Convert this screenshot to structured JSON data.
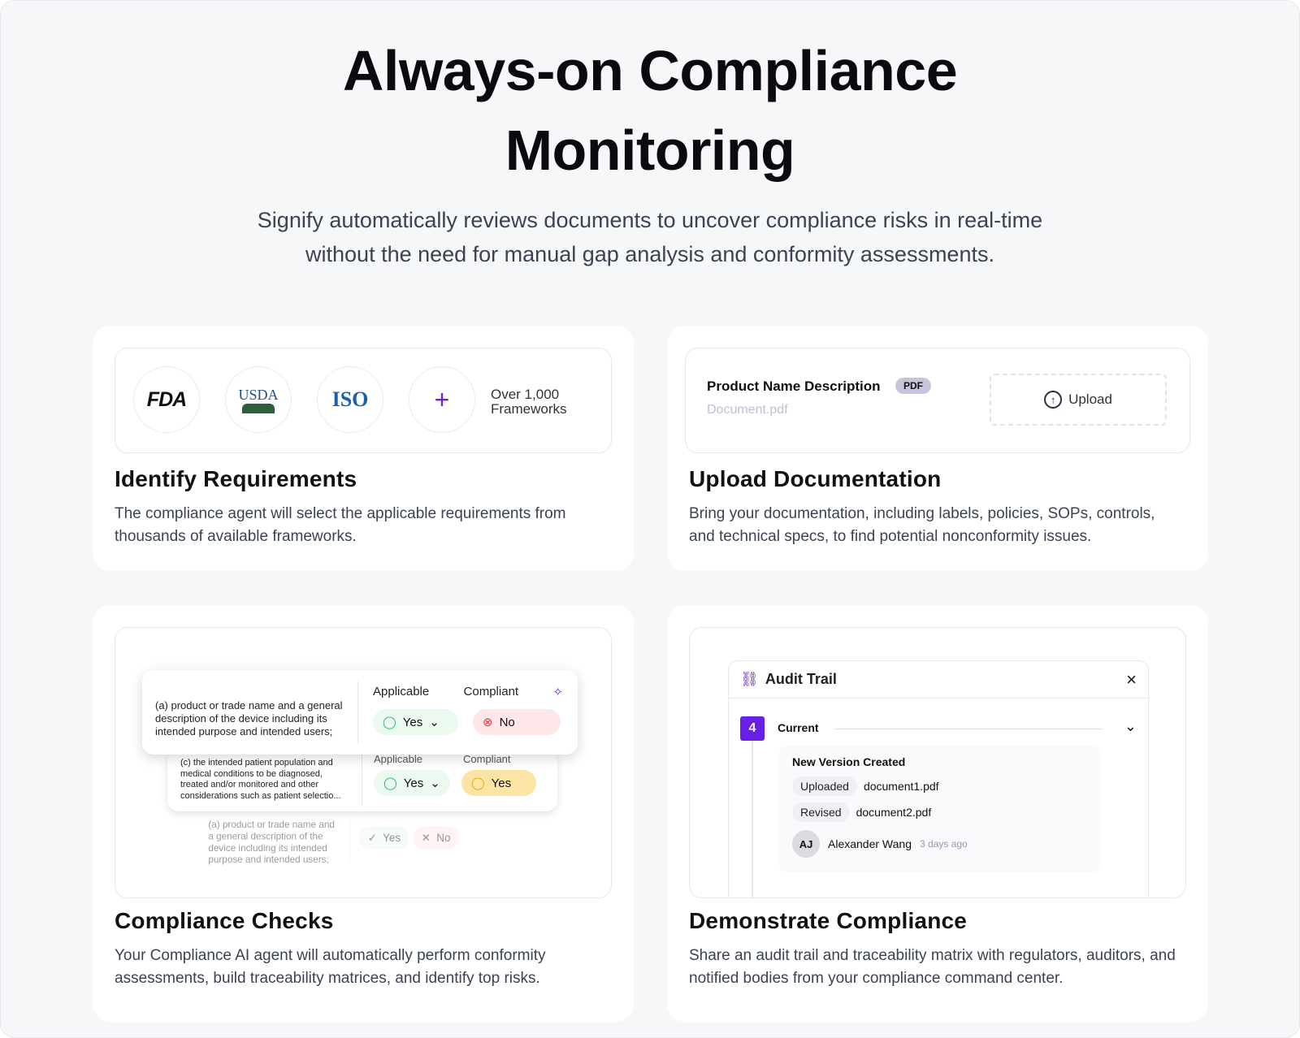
{
  "header": {
    "title_line1": "Always-on Compliance",
    "title_line2": "Monitoring",
    "subtitle": "Signify automatically reviews documents to uncover compliance risks in real-time without the need for manual gap analysis and conformity assessments."
  },
  "identify": {
    "logos": [
      "FDA",
      "USDA",
      "ISO"
    ],
    "plus": "+",
    "more_line1": "Over 1,000",
    "more_line2": "Frameworks",
    "title": "Identify Requirements",
    "desc": "The compliance agent will select the applicable requirements from thousands of available frameworks."
  },
  "upload": {
    "doc_title": "Product Name Description",
    "badge": "PDF",
    "filename": "Document.pdf",
    "button": "Upload",
    "title": "Upload Documentation",
    "desc": "Bring your documentation, including labels, policies, SOPs, controls, and technical specs, to find potential nonconformity issues."
  },
  "checks": {
    "applicable_label": "Applicable",
    "compliant_label": "Compliant",
    "rows": [
      {
        "text": "(a) product or trade name and a general description of the device including its intended purpose and intended users;",
        "applicable": "Yes",
        "compliant": "No"
      },
      {
        "text": "(c) the intended patient population and medical conditions to be diagnosed, treated and/or monitored and other considerations such as patient selectio...",
        "applicable": "Yes",
        "compliant": "Yes"
      },
      {
        "text": "(a) product or trade name and a general description of the device including its intended purpose and intended users;",
        "applicable": "Yes",
        "compliant": "No"
      }
    ],
    "title": "Compliance Checks",
    "desc": "Your Compliance AI agent will automatically perform conformity assessments, build traceability matrices, and identify top risks."
  },
  "audit": {
    "panel_title": "Audit Trail",
    "close": "×",
    "version_number": "4",
    "version_label": "Current",
    "event_title": "New Version Created",
    "entries": [
      {
        "tag": "Uploaded",
        "file": "document1.pdf"
      },
      {
        "tag": "Revised",
        "file": "document2.pdf"
      }
    ],
    "user_initials": "AJ",
    "user_name": "Alexander Wang",
    "time": "3 days ago",
    "title": "Demonstrate Compliance",
    "desc": "Share an audit trail and traceability matrix with regulators, auditors, and notified bodies from your compliance command center."
  },
  "colors": {
    "accent": "#6a1fe6",
    "green": "#2bb673",
    "red": "#e5343d",
    "yellow": "#e6a800"
  }
}
